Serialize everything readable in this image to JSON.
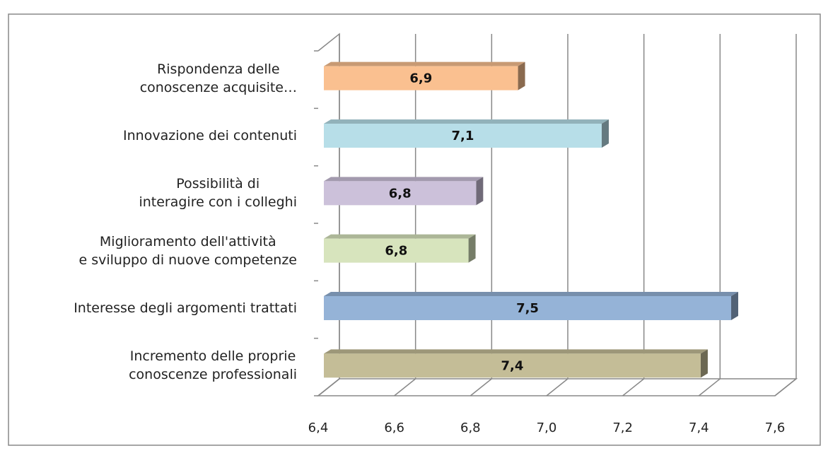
{
  "chart_data": {
    "type": "bar3d_horizontal",
    "categories": [
      "Rispondenza delle\nconoscenze acquisite…",
      "Innovazione dei contenuti",
      "Possibilità di\ninteragire con i colleghi",
      "Miglioramento dell'attività\ne sviluppo di nuove competenze",
      "Interesse degli argomenti trattati",
      "Incremento delle proprie\nconoscenze professionali"
    ],
    "values": [
      6.91,
      7.13,
      6.8,
      6.78,
      7.47,
      7.39
    ],
    "value_labels": [
      "6,9",
      "7,1",
      "6,8",
      "6,8",
      "7,5",
      "7,4"
    ],
    "colors": [
      "#fac090",
      "#b7dee8",
      "#ccc1da",
      "#d7e4bd",
      "#95b3d7",
      "#c4bd97"
    ],
    "xlim": [
      6.4,
      7.6
    ],
    "xticks": [
      {
        "value": 6.4,
        "label": "6,4"
      },
      {
        "value": 6.6,
        "label": "6,6"
      },
      {
        "value": 6.8,
        "label": "6,8"
      },
      {
        "value": 7.0,
        "label": "7,0"
      },
      {
        "value": 7.2,
        "label": "7,2"
      },
      {
        "value": 7.4,
        "label": "7,4"
      },
      {
        "value": 7.6,
        "label": "7,6"
      }
    ],
    "grid": true
  }
}
